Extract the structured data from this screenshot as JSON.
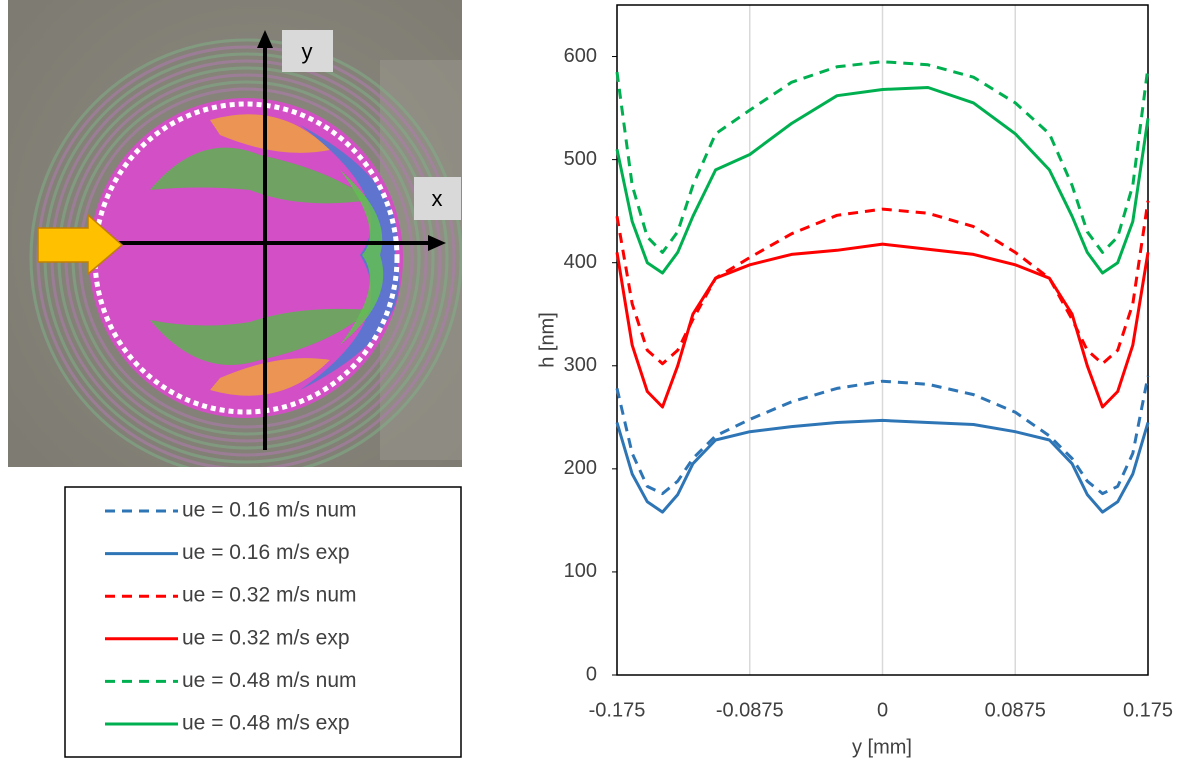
{
  "chart_data": {
    "type": "line",
    "xlabel": "y [mm]",
    "ylabel": "h [nm]",
    "x": [
      -0.175,
      -0.165,
      -0.155,
      -0.145,
      -0.135,
      -0.125,
      -0.11,
      -0.0875,
      -0.06,
      -0.03,
      0,
      0.03,
      0.06,
      0.0875,
      0.11,
      0.125,
      0.135,
      0.145,
      0.155,
      0.165,
      0.175
    ],
    "xlim": [
      -0.175,
      0.175
    ],
    "xticks": [
      -0.175,
      -0.0875,
      0,
      0.0875,
      0.175
    ],
    "ylim": [
      0,
      650
    ],
    "yticks": [
      0,
      100,
      200,
      300,
      400,
      500,
      600
    ],
    "grid": "x",
    "series": [
      {
        "name": "ue = 0.16 m/s num",
        "color": "#2e75b6",
        "line_style": "dashed",
        "values": [
          278,
          215,
          183,
          176,
          188,
          210,
          232,
          248,
          265,
          278,
          285,
          282,
          272,
          255,
          232,
          210,
          188,
          176,
          183,
          215,
          290
        ]
      },
      {
        "name": "ue = 0.16 m/s exp",
        "color": "#2e75b6",
        "line_style": "solid",
        "values": [
          245,
          195,
          168,
          158,
          175,
          205,
          228,
          236,
          241,
          245,
          247,
          245,
          243,
          236,
          228,
          205,
          175,
          158,
          168,
          195,
          245
        ]
      },
      {
        "name": "ue = 0.32 m/s num",
        "color": "#ff0000",
        "line_style": "dashed",
        "values": [
          445,
          360,
          315,
          302,
          315,
          345,
          385,
          405,
          428,
          446,
          452,
          448,
          435,
          410,
          385,
          345,
          315,
          302,
          315,
          360,
          460
        ]
      },
      {
        "name": "ue = 0.32 m/s exp",
        "color": "#ff0000",
        "line_style": "solid",
        "values": [
          410,
          320,
          275,
          260,
          300,
          350,
          385,
          398,
          408,
          412,
          418,
          413,
          408,
          398,
          385,
          350,
          300,
          260,
          275,
          320,
          410
        ]
      },
      {
        "name": "ue = 0.48 m/s num",
        "color": "#00b050",
        "line_style": "dashed",
        "values": [
          585,
          475,
          425,
          410,
          430,
          475,
          525,
          548,
          575,
          590,
          595,
          592,
          580,
          555,
          525,
          475,
          430,
          410,
          425,
          475,
          590
        ]
      },
      {
        "name": "ue = 0.48 m/s exp",
        "color": "#00b050",
        "line_style": "solid",
        "values": [
          510,
          440,
          400,
          390,
          410,
          445,
          490,
          505,
          535,
          562,
          568,
          570,
          555,
          525,
          490,
          445,
          410,
          390,
          400,
          440,
          540
        ]
      }
    ]
  },
  "inset_labels": {
    "vertical_axis": "y",
    "horizontal_axis": "x"
  }
}
